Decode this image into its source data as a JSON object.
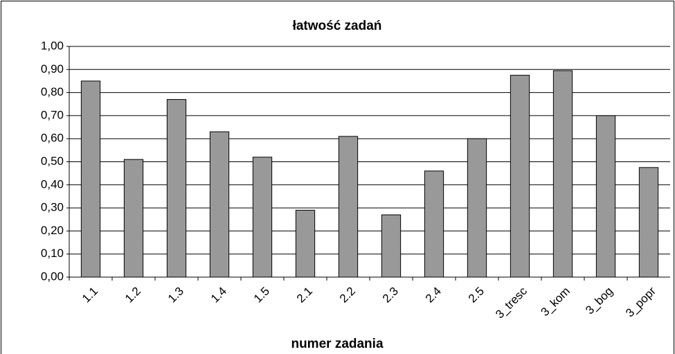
{
  "chart_data": {
    "type": "bar",
    "title": "łatwość zadań",
    "x_label": "numer zadania",
    "categories": [
      "1.1",
      "1.2",
      "1.3",
      "1.4",
      "1.5",
      "2.1",
      "2.2",
      "2.3",
      "2.4",
      "2.5",
      "3_tresc",
      "3_kom",
      "3_bog",
      "3_popr"
    ],
    "values": [
      0.85,
      0.51,
      0.77,
      0.63,
      0.52,
      0.29,
      0.61,
      0.27,
      0.46,
      0.6,
      0.875,
      0.895,
      0.7,
      0.475
    ],
    "color": "#999999",
    "ylim": [
      0,
      1
    ],
    "yticks": [
      {
        "value": 0,
        "label": "0,00"
      },
      {
        "value": 0.1,
        "label": "0,10"
      },
      {
        "value": 0.2,
        "label": "0,20"
      },
      {
        "value": 0.3,
        "label": "0,30"
      },
      {
        "value": 0.4,
        "label": "0,40"
      },
      {
        "value": 0.5,
        "label": "0,50"
      },
      {
        "value": 0.6,
        "label": "0,60"
      },
      {
        "value": 0.7,
        "label": "0,70"
      },
      {
        "value": 0.8,
        "label": "0,80"
      },
      {
        "value": 0.9,
        "label": "0,90"
      },
      {
        "value": 1,
        "label": "1,00"
      }
    ],
    "grid": true
  }
}
